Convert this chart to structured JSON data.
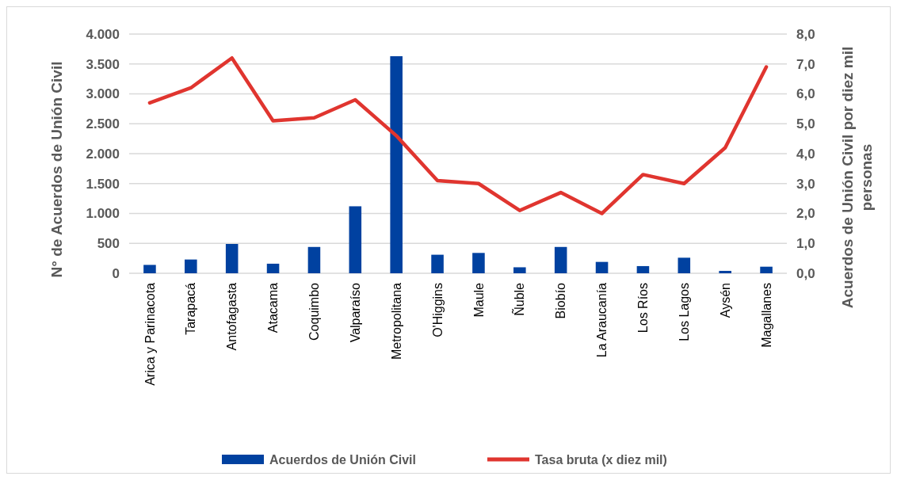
{
  "chart_data": {
    "type": "bar",
    "ylabel": "N° de Acuerdos de Unión Civil",
    "y2label": "Acuerdos de Unión Civil por diez mil personas",
    "categories": [
      "Arica y Parinacota",
      "Tarapacá",
      "Antofagasta",
      "Atacama",
      "Coquimbo",
      "Valparaíso",
      "Metropolitana",
      "O'Higgins",
      "Maule",
      "Ñuble",
      "Biobío",
      "La Araucanía",
      "Los Ríos",
      "Los Lagos",
      "Aysén",
      "Magallanes"
    ],
    "series": [
      {
        "name": "Acuerdos de Unión Civil",
        "color": "#0041a0",
        "values": [
          140,
          230,
          490,
          160,
          440,
          1120,
          3630,
          310,
          340,
          100,
          440,
          190,
          120,
          260,
          40,
          110
        ]
      },
      {
        "name": "Tasa bruta (x diez mil)",
        "type": "line",
        "axis": "y2",
        "color": "#e0352f",
        "values": [
          5.7,
          6.2,
          7.2,
          5.1,
          5.2,
          5.8,
          4.6,
          3.1,
          3.0,
          2.1,
          2.7,
          2.0,
          3.3,
          3.0,
          4.2,
          6.9
        ]
      }
    ],
    "ylim": [
      0,
      4000
    ],
    "yticks": [
      {
        "value": 0,
        "label": "0"
      },
      {
        "value": 500,
        "label": "500"
      },
      {
        "value": 1000,
        "label": "1.000"
      },
      {
        "value": 1500,
        "label": "1.500"
      },
      {
        "value": 2000,
        "label": "2.000"
      },
      {
        "value": 2500,
        "label": "2.500"
      },
      {
        "value": 3000,
        "label": "3.000"
      },
      {
        "value": 3500,
        "label": "3.500"
      },
      {
        "value": 4000,
        "label": "4.000"
      }
    ],
    "y2lim": [
      0,
      8
    ],
    "y2ticks": [
      {
        "value": 0,
        "label": "0,0"
      },
      {
        "value": 1,
        "label": "1,0"
      },
      {
        "value": 2,
        "label": "2,0"
      },
      {
        "value": 3,
        "label": "3,0"
      },
      {
        "value": 4,
        "label": "4,0"
      },
      {
        "value": 5,
        "label": "5,0"
      },
      {
        "value": 6,
        "label": "6,0"
      },
      {
        "value": 7,
        "label": "7,0"
      },
      {
        "value": 8,
        "label": "8,0"
      }
    ],
    "grid": "y",
    "legend": "bottom"
  }
}
